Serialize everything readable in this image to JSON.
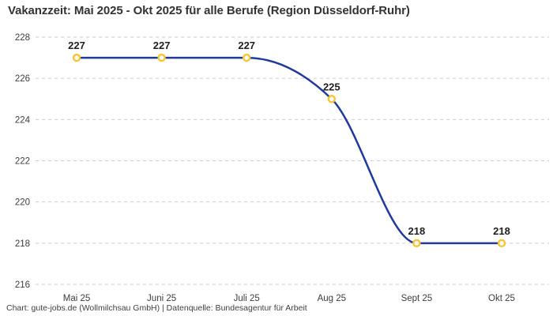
{
  "header": {
    "title": "Vakanzzeit: Mai 2025 - Okt 2025 für alle Berufe (Region Düsseldorf-Ruhr)"
  },
  "footer": {
    "credit": "Chart: gute-jobs.de (Wollmilchsau GmbH) | Datenquelle: Bundesagentur für Arbeit"
  },
  "chart_data": {
    "type": "line",
    "title": "Vakanzzeit: Mai 2025 - Okt 2025 für alle Berufe (Region Düsseldorf-Ruhr)",
    "categories": [
      "Mai 25",
      "Juni 25",
      "Juli 25",
      "Aug 25",
      "Sept 25",
      "Okt 25"
    ],
    "values": [
      227,
      227,
      227,
      225,
      218,
      218
    ],
    "data_labels": true,
    "xlabel": "",
    "ylabel": "",
    "ylim": [
      216,
      228
    ],
    "ytick_step": 2,
    "legend": "none",
    "grid": "horizontal-dashed",
    "line_style": "smooth-monotone",
    "colors": {
      "line": "#1d3a9c",
      "marker_stroke": "#fcc331",
      "marker_fill": "#ffffff",
      "grid": "#cbcbcb",
      "axis_label": "#3d3d3d",
      "data_label": "#1f1f1f",
      "title": "#333333",
      "credit": "#404040"
    }
  }
}
